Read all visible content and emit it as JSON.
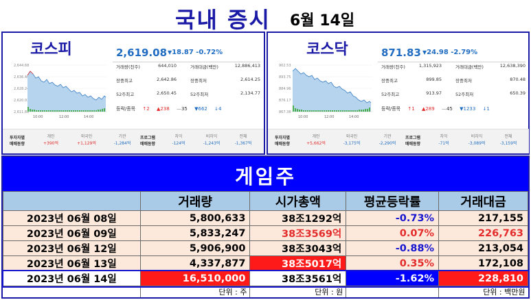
{
  "header": {
    "title": "국내 증시",
    "date": "6월 14일"
  },
  "kospi": {
    "name": "코스피",
    "price": "2,619.08",
    "change": "18.87",
    "change_pct": "-0.72%",
    "y_ticks": [
      "2,644.68",
      "2,636.46",
      "2,628.24",
      "2,620.03",
      "2,611.81"
    ],
    "x_ticks": [
      "10:00",
      "12:00",
      "14:00"
    ],
    "stats": [
      {
        "label": "거래량(천주)",
        "value": "644,010",
        "label2": "거래대금(백만)",
        "value2": "12,886,413"
      },
      {
        "label": "장중최고",
        "value": "2,642.86",
        "label2": "장중최저",
        "value2": "2,614.25"
      },
      {
        "label": "52주최고",
        "value": "2,650.45",
        "label2": "52주최저",
        "value2": "2,134.77"
      }
    ],
    "updown": {
      "label": "등락/종목",
      "upper": "2",
      "up": "238",
      "flat": "35",
      "down": "662",
      "lower": "4"
    },
    "investor": {
      "title1": "투자자별",
      "title2": "매매동향",
      "cols": [
        {
          "h": "개인",
          "v": "+390억"
        },
        {
          "h": "외국인",
          "v": "+1,129억"
        },
        {
          "h": "기관",
          "v": "-1,284억"
        }
      ],
      "prog_title1": "프로그램",
      "prog_title2": "매매동향",
      "prog_cols": [
        {
          "h": "차익",
          "v": "-124억"
        },
        {
          "h": "비차익",
          "v": "-1,243억"
        },
        {
          "h": "전체",
          "v": "-1,367억"
        }
      ]
    }
  },
  "kosdaq": {
    "name": "코스닥",
    "price": "871.83",
    "change": "24.98",
    "change_pct": "-2.79%",
    "y_ticks": [
      "902.53",
      "893.75",
      "884.96",
      "876.17",
      "867.38"
    ],
    "x_ticks": [
      "10:00",
      "12:00",
      "14:00"
    ],
    "stats": [
      {
        "label": "거래량(천주)",
        "value": "1,315,923",
        "label2": "거래대금(백만)",
        "value2": "12,638,390"
      },
      {
        "label": "장중최고",
        "value": "899.85",
        "label2": "장중최저",
        "value2": "870.48"
      },
      {
        "label": "52주최고",
        "value": "913.97",
        "label2": "52주최저",
        "value2": "650.39"
      }
    ],
    "updown": {
      "label": "등락/종목",
      "upper": "1",
      "up": "289",
      "flat": "45",
      "down": "1233",
      "lower": "1"
    },
    "investor": {
      "title1": "투자자별",
      "title2": "매매동향",
      "cols": [
        {
          "h": "개인",
          "v": "+5,662억"
        },
        {
          "h": "외국인",
          "v": "-3,175억"
        },
        {
          "h": "기관",
          "v": "-2,290억"
        }
      ],
      "prog_title1": "프로그램",
      "prog_title2": "매매동향",
      "prog_cols": [
        {
          "h": "차익",
          "v": "-71억"
        },
        {
          "h": "비차익",
          "v": "-3,089억"
        },
        {
          "h": "전체",
          "v": "-3,159억"
        }
      ]
    }
  },
  "game": {
    "banner": "게임주",
    "headers": [
      "",
      "거래량",
      "시가총액",
      "평균등락률",
      "거래대금"
    ],
    "rows": [
      {
        "date": "2023년 06월 08일",
        "volume": "5,800,633",
        "mcap": "38조1292억",
        "avg": "-0.73%",
        "amount": "217,155"
      },
      {
        "date": "2023년 06월 09일",
        "volume": "5,833,247",
        "mcap": "38조3569억",
        "avg": "0.07%",
        "amount": "226,763"
      },
      {
        "date": "2023년 06월 12일",
        "volume": "5,906,900",
        "mcap": "38조3043억",
        "avg": "-0.88%",
        "amount": "213,054"
      },
      {
        "date": "2023년 06월 13일",
        "volume": "4,337,877",
        "mcap": "38조5017억",
        "avg": "0.35%",
        "amount": "172,108"
      },
      {
        "date": "2023년 06월 14일",
        "volume": "16,510,000",
        "mcap": "38조3561억",
        "avg": "-1.62%",
        "amount": "228,810"
      }
    ],
    "units": {
      "volume": "단위 : 주",
      "mcap": "단위 : 원",
      "amount": "단위 : 백만원"
    }
  },
  "colors": {
    "accent_blue": "#1a1aa6",
    "banner_blue": "#0000ff",
    "up_red": "#e32b2b",
    "down_blue": "#1f6cc2",
    "header_bg": "#a9cbe8",
    "row_bg": "#fde9dc"
  }
}
